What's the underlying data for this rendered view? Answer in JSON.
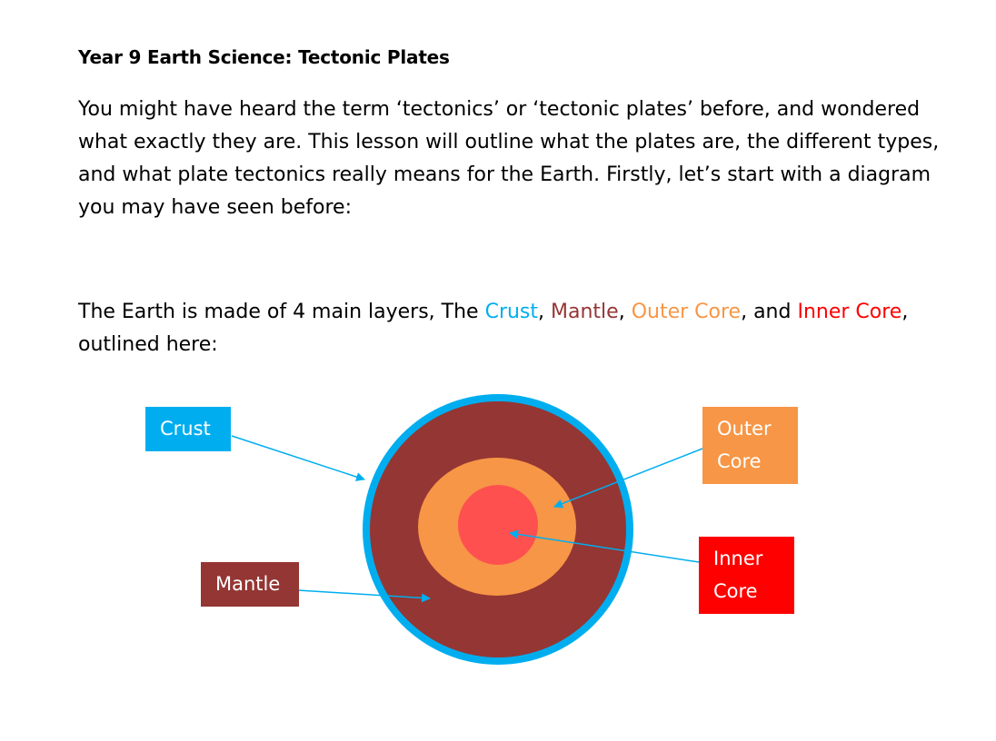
{
  "document": {
    "title": "Year 9 Earth Science: Tectonic Plates",
    "intro_paragraph": "You might have heard the term ‘tectonics’ or ‘tectonic plates’ before, and wondered what exactly they are. This lesson will outline what the plates are, the different types, and what plate tectonics really means for the Earth. Firstly, let’s start with a diagram you may have seen before:",
    "layers_sentence": {
      "prefix": "The Earth is made of 4 main layers, The ",
      "crust": "Crust",
      "sep1": ", ",
      "mantle": "Mantle",
      "sep2": ", ",
      "outer_core": "Outer Core",
      "sep3": ", and ",
      "inner_core": "Inner Core",
      "suffix": ", outlined here:"
    }
  },
  "diagram": {
    "labels": {
      "crust": "Crust",
      "mantle": "Mantle",
      "outer_core_line1": "Outer",
      "outer_core_line2": "Core",
      "inner_core_line1": "Inner",
      "inner_core_line2": "Core"
    },
    "colors": {
      "crust": "#00aeef",
      "mantle": "#943634",
      "outer_core": "#f79646",
      "inner_core_fill": "#ff5050",
      "inner_core_label": "#ff0000",
      "arrow": "#00aeef"
    }
  }
}
